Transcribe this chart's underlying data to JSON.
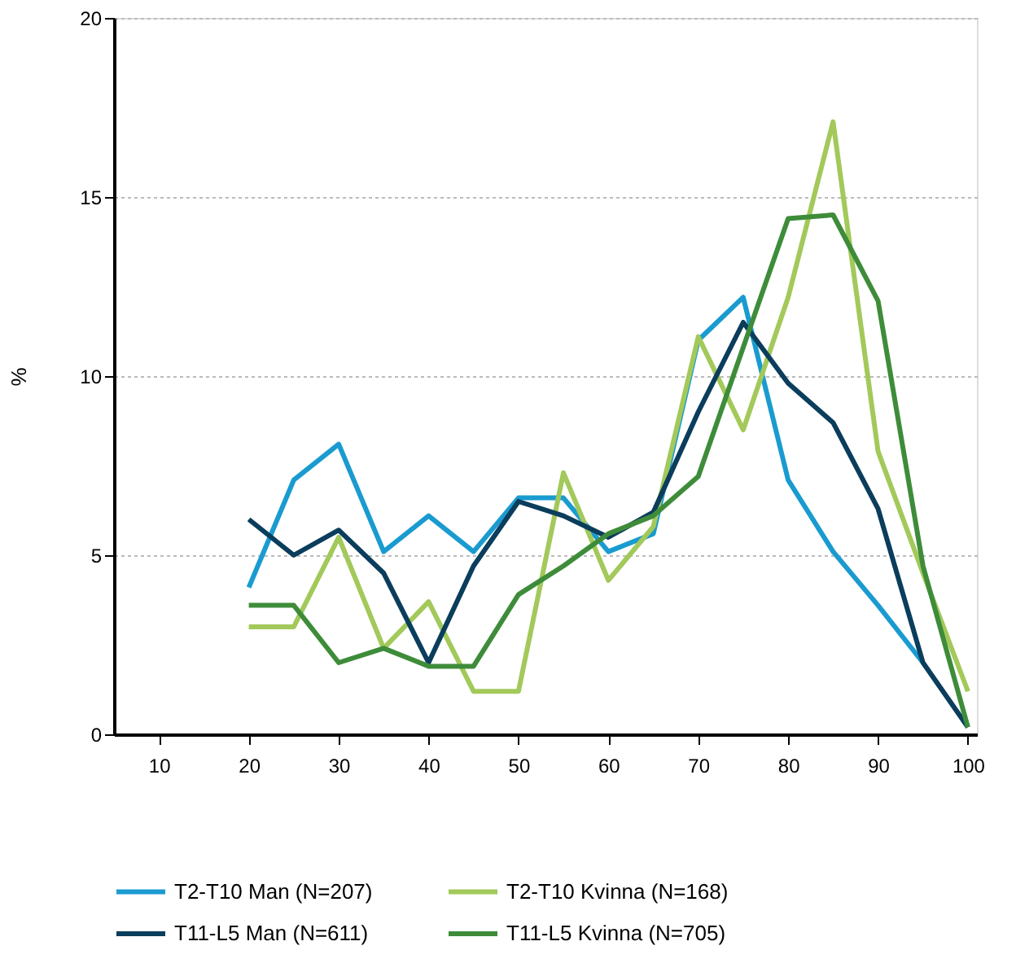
{
  "chart_data": {
    "type": "line",
    "ylabel": "%",
    "x": [
      20,
      25,
      30,
      35,
      40,
      45,
      50,
      55,
      60,
      65,
      70,
      75,
      80,
      85,
      90,
      95,
      100
    ],
    "xlim": [
      5,
      101
    ],
    "xticks": [
      10,
      20,
      30,
      40,
      50,
      60,
      70,
      80,
      90,
      100
    ],
    "ylim": [
      0,
      20
    ],
    "yticks": [
      0,
      5,
      10,
      15,
      20
    ],
    "grid": "y",
    "legend": "bottom",
    "line_style": "solid",
    "marker": "none",
    "series": [
      {
        "name": "T2-T10 Man (N=207)",
        "color": "#1a9bd0",
        "values": [
          4.1,
          7.1,
          8.1,
          5.1,
          6.1,
          5.1,
          6.6,
          6.6,
          5.1,
          5.6,
          11.0,
          12.2,
          7.1,
          5.1,
          3.6,
          2.0,
          null
        ]
      },
      {
        "name": "T2-T10 Kvinna (N=168)",
        "color": "#a2c95a",
        "values": [
          3.0,
          3.0,
          5.5,
          2.4,
          3.7,
          1.2,
          1.2,
          7.3,
          4.3,
          5.8,
          11.1,
          8.5,
          12.2,
          17.1,
          7.9,
          4.5,
          1.2
        ]
      },
      {
        "name": "T11-L5 Man (N=611)",
        "color": "#0b3d5c",
        "values": [
          6.0,
          5.0,
          5.7,
          4.5,
          2.0,
          4.7,
          6.5,
          6.1,
          5.5,
          6.2,
          9.0,
          11.5,
          9.8,
          8.7,
          6.3,
          2.0,
          0.2
        ]
      },
      {
        "name": "T11-L5 Kvinna (N=705)",
        "color": "#3e8c3a",
        "values": [
          3.6,
          3.6,
          2.0,
          2.4,
          1.9,
          1.9,
          3.9,
          4.7,
          5.6,
          6.1,
          7.2,
          10.8,
          14.4,
          14.5,
          12.1,
          4.7,
          0.2
        ]
      }
    ]
  }
}
